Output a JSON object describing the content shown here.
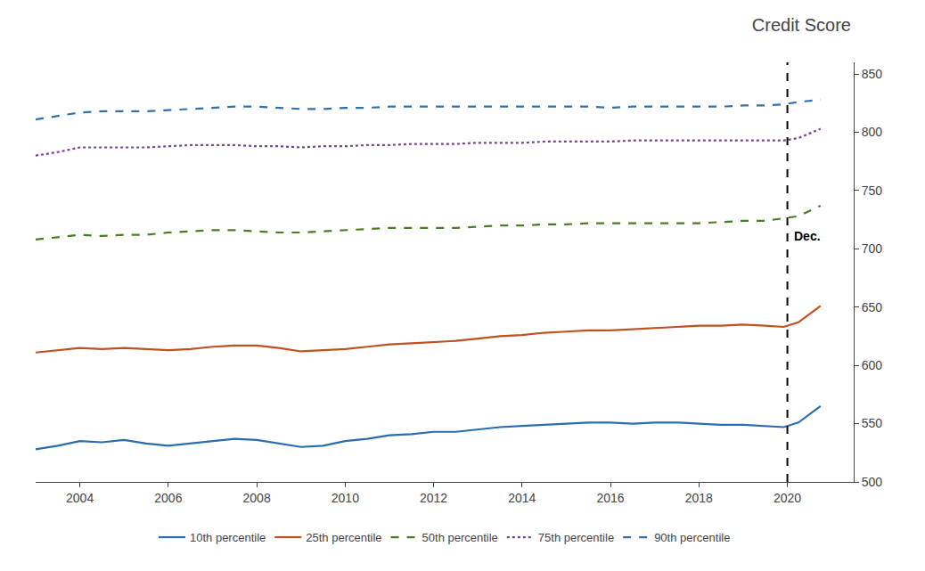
{
  "chart_data": {
    "type": "line",
    "title": "Credit Score",
    "x": [
      2003,
      2003.5,
      2004,
      2004.5,
      2005,
      2005.5,
      2006,
      2006.5,
      2007,
      2007.5,
      2008,
      2008.5,
      2009,
      2009.5,
      2010,
      2010.5,
      2011,
      2011.5,
      2012,
      2012.5,
      2013,
      2013.5,
      2014,
      2014.5,
      2015,
      2015.5,
      2016,
      2016.5,
      2017,
      2017.5,
      2018,
      2018.5,
      2019,
      2019.5,
      2019.917,
      2020.25,
      2020.75
    ],
    "series": [
      {
        "name": "10th percentile",
        "color": "#2b6cb0",
        "line_style": "solid",
        "values": [
          528,
          531,
          535,
          534,
          536,
          533,
          531,
          533,
          535,
          537,
          536,
          533,
          530,
          531,
          535,
          537,
          540,
          541,
          543,
          543,
          545,
          547,
          548,
          549,
          550,
          551,
          551,
          550,
          551,
          551,
          550,
          549,
          549,
          548,
          547,
          551,
          565
        ]
      },
      {
        "name": "25th percentile",
        "color": "#c05020",
        "line_style": "solid",
        "values": [
          611,
          613,
          615,
          614,
          615,
          614,
          613,
          614,
          616,
          617,
          617,
          615,
          612,
          613,
          614,
          616,
          618,
          619,
          620,
          621,
          623,
          625,
          626,
          628,
          629,
          630,
          630,
          631,
          632,
          633,
          634,
          634,
          635,
          634,
          633,
          637,
          651
        ]
      },
      {
        "name": "50th percentile",
        "color": "#4a7c20",
        "line_style": "dashed",
        "values": [
          708,
          710,
          712,
          711,
          712,
          712,
          714,
          715,
          716,
          716,
          715,
          714,
          714,
          715,
          716,
          717,
          718,
          718,
          718,
          718,
          719,
          720,
          720,
          721,
          721,
          722,
          722,
          722,
          722,
          722,
          722,
          723,
          724,
          724,
          726,
          728,
          737
        ]
      },
      {
        "name": "75th percentile",
        "color": "#7b3fa0",
        "line_style": "dotted",
        "values": [
          780,
          783,
          787,
          787,
          787,
          787,
          788,
          789,
          789,
          789,
          788,
          788,
          787,
          788,
          788,
          789,
          789,
          790,
          790,
          790,
          791,
          791,
          791,
          792,
          792,
          792,
          792,
          793,
          793,
          793,
          793,
          793,
          793,
          793,
          793,
          795,
          803
        ]
      },
      {
        "name": "90th percentile",
        "color": "#3070b0",
        "line_style": "dashed",
        "values": [
          811,
          814,
          817,
          818,
          818,
          818,
          819,
          820,
          821,
          822,
          822,
          821,
          820,
          820,
          821,
          821,
          822,
          822,
          822,
          822,
          822,
          822,
          822,
          822,
          822,
          822,
          821,
          822,
          822,
          822,
          822,
          822,
          823,
          823,
          824,
          826,
          828
        ]
      }
    ],
    "vline": {
      "x": 2020.0,
      "label": "Dec.",
      "label_y": 720
    },
    "xlim": [
      2003.0,
      2021.5
    ],
    "xticks": [
      2004,
      2006,
      2008,
      2010,
      2012,
      2014,
      2016,
      2018,
      2020
    ],
    "ylim": [
      500,
      860
    ],
    "yticks": [
      500,
      550,
      600,
      650,
      700,
      750,
      800,
      850
    ],
    "grid": false,
    "legend": "bottom"
  }
}
